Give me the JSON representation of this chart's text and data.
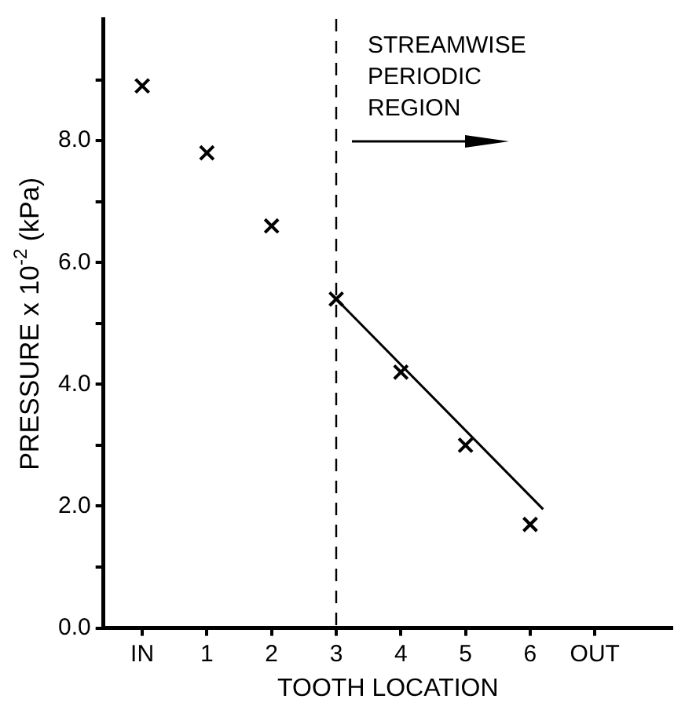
{
  "chart_data": {
    "type": "scatter",
    "xlabel": "TOOTH LOCATION",
    "ylabel": "PRESSURE x 10$^{-2}$ (kPa)",
    "xlim": [
      -0.6,
      8.2
    ],
    "xticks": [
      {
        "value": 0,
        "label": "IN"
      },
      1,
      2,
      3,
      4,
      5,
      6,
      {
        "value": 7,
        "label": "OUT"
      }
    ],
    "ylim": [
      0,
      10
    ],
    "yticks": [
      {
        "value": 0,
        "label": "0.0"
      },
      {
        "value": 1,
        "label": null
      },
      {
        "value": 2,
        "label": "2.0"
      },
      {
        "value": 3,
        "label": null
      },
      {
        "value": 4,
        "label": "4.0"
      },
      {
        "value": 5,
        "label": null
      },
      {
        "value": 6,
        "label": "6.0"
      },
      {
        "value": 7,
        "label": null
      },
      {
        "value": 8,
        "label": "8.0"
      },
      {
        "value": 9,
        "label": null
      }
    ],
    "series": [
      {
        "color": "#000000",
        "x": [
          0,
          1,
          2,
          3,
          4,
          5,
          6
        ],
        "values": [
          8.9,
          7.8,
          6.6,
          5.4,
          4.2,
          3.0,
          1.7
        ]
      },
      {
        "type": "line",
        "marker": "none",
        "color": "#000000",
        "x": [
          3,
          6.2
        ],
        "values": [
          5.4,
          1.95
        ]
      }
    ],
    "marker": "cross",
    "grid": false,
    "legend": false,
    "ref_lines": [
      {
        "axis": "x",
        "value": 3,
        "line_style": "dashed",
        "color": "#000000"
      }
    ],
    "annotations": [
      "STREAMWISE PERIODIC REGION"
    ]
  }
}
